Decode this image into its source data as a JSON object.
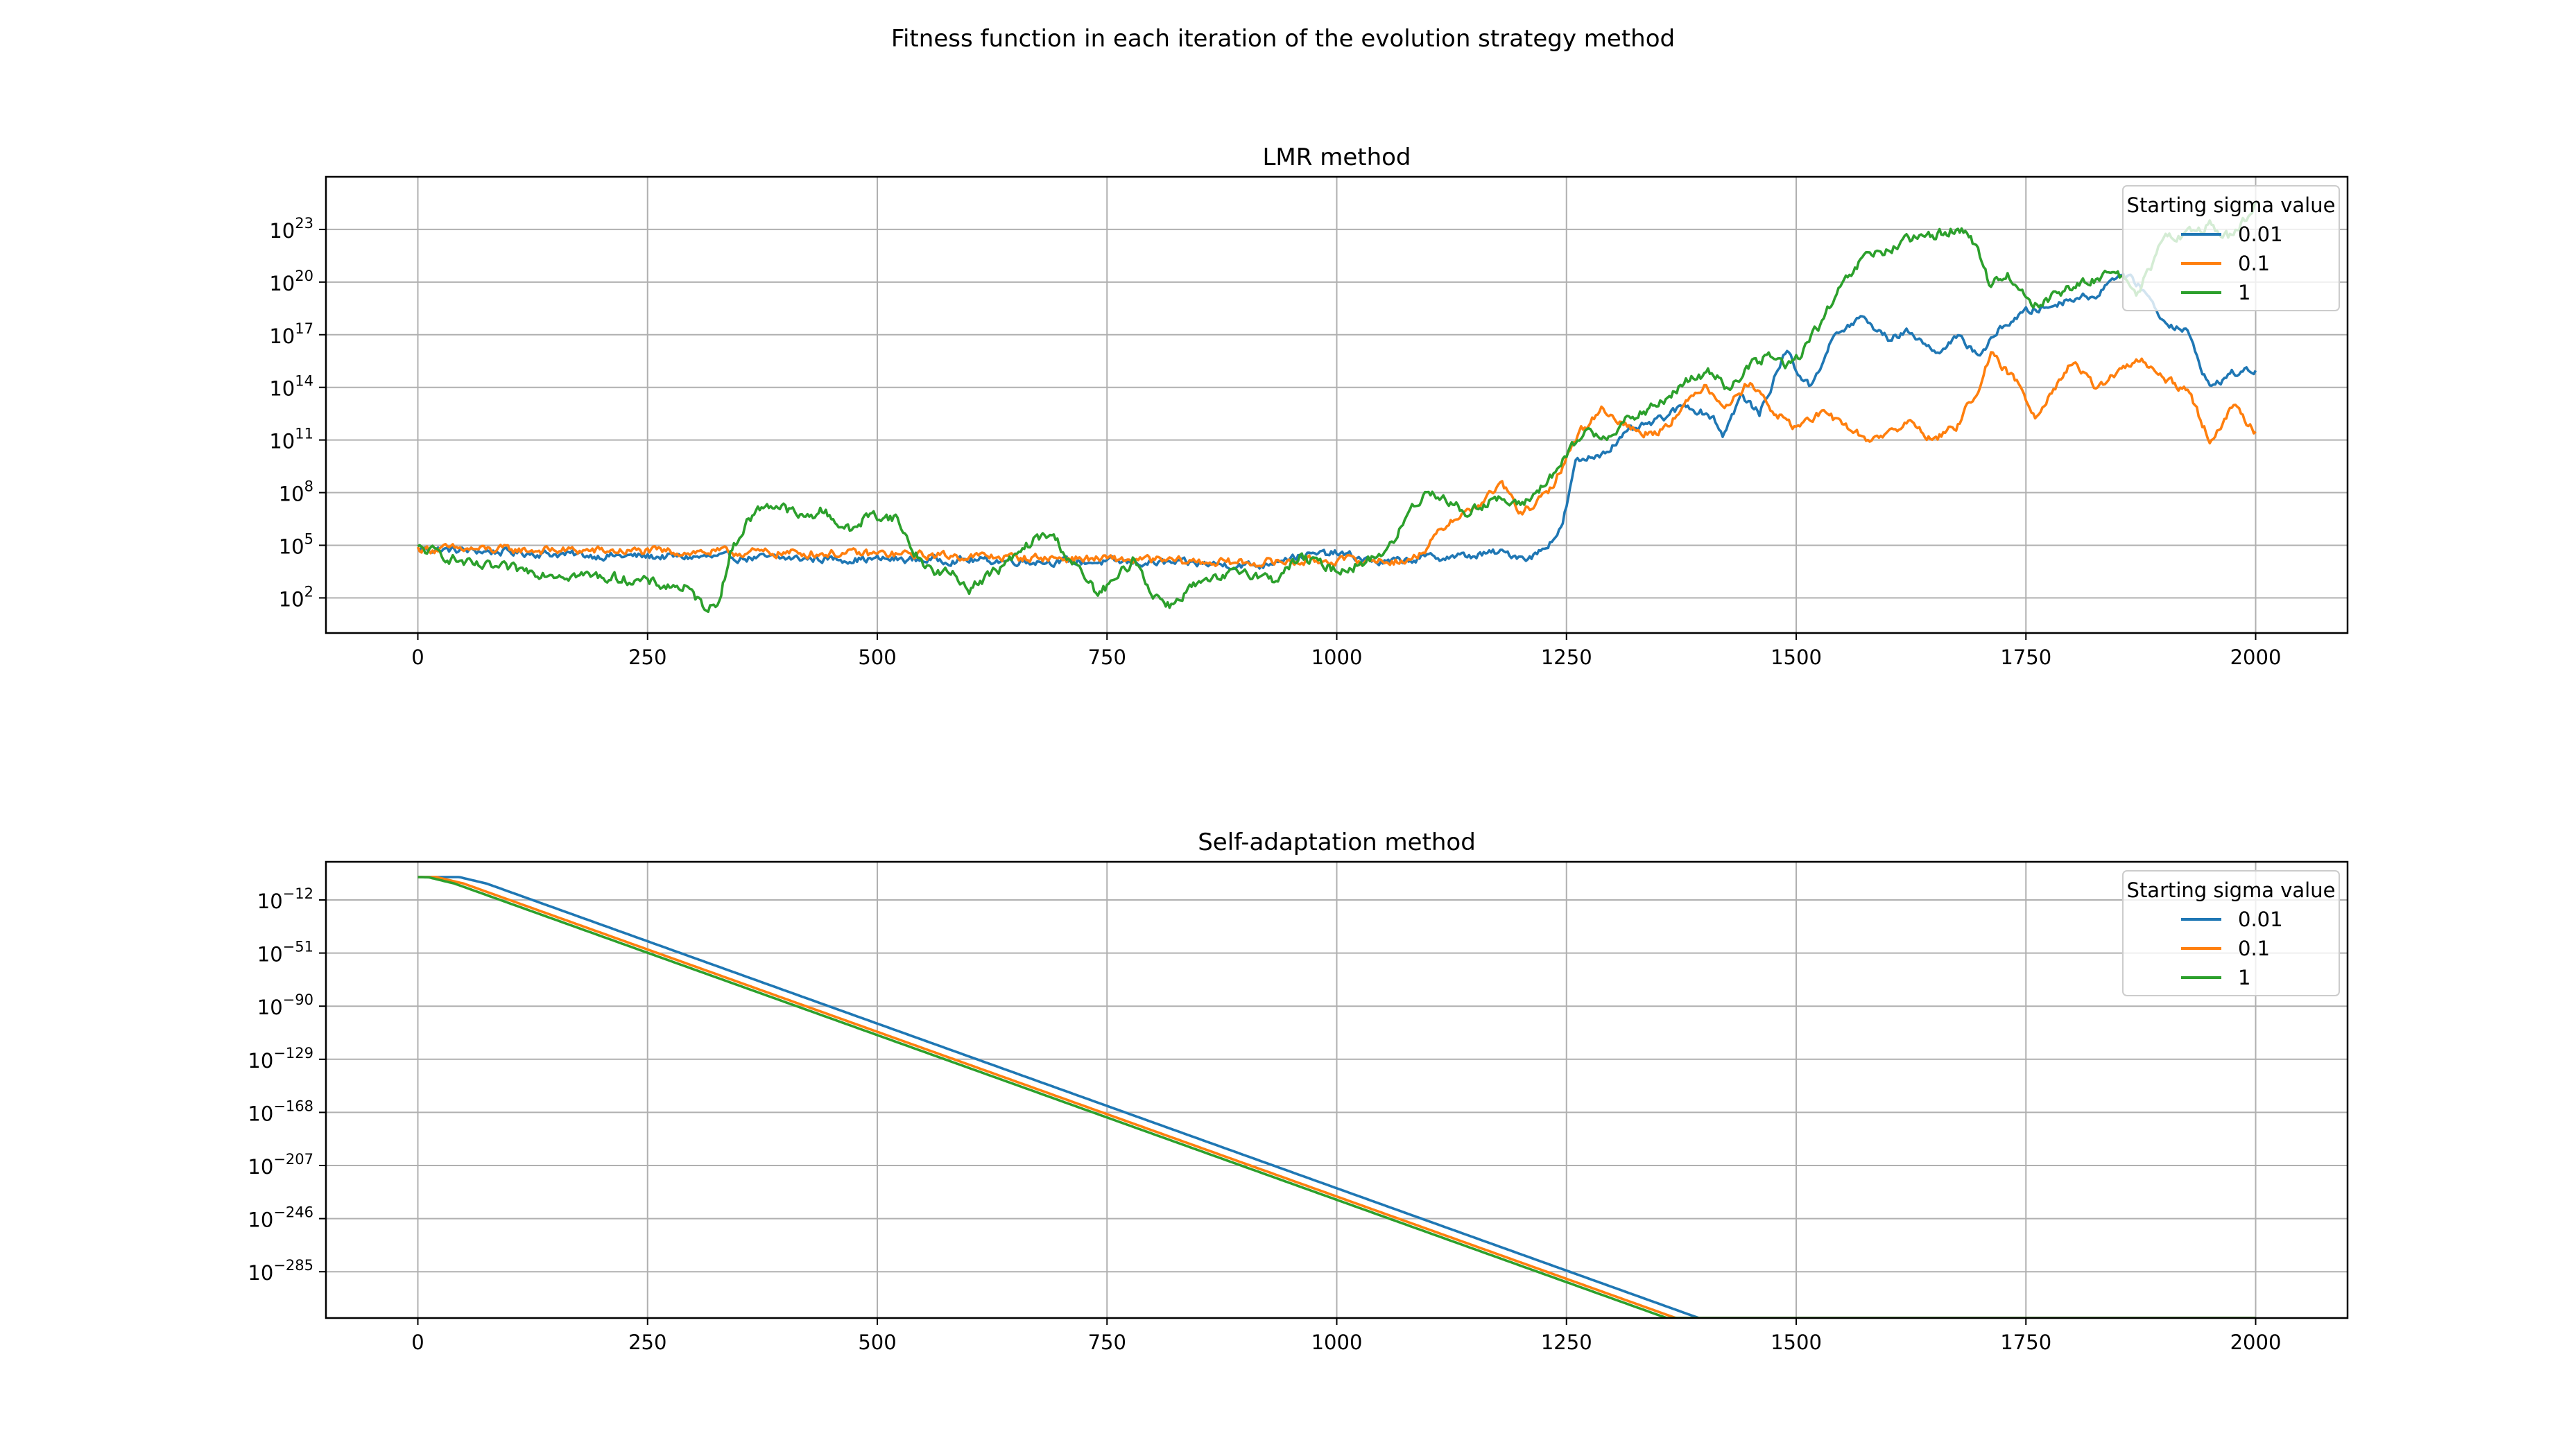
{
  "figure": {
    "suptitle": "Fitness function in each iteration of the evolution strategy method"
  },
  "colors": {
    "series": [
      "#1f77b4",
      "#ff7f0e",
      "#2ca02c"
    ],
    "grid": "#b0b0b0",
    "axes": "#000000",
    "background": "#ffffff"
  },
  "chart_data": [
    {
      "type": "line",
      "title": "LMR method",
      "xlabel": "",
      "ylabel": "",
      "x_range": [
        0,
        2000
      ],
      "xlim": [
        -100,
        2100
      ],
      "xticks": [
        0,
        250,
        500,
        750,
        1000,
        1250,
        1500,
        1750,
        2000
      ],
      "yscale": "log",
      "ylim_log10": [
        0,
        26
      ],
      "ytick_exponents": [
        2,
        5,
        8,
        11,
        14,
        17,
        20,
        23
      ],
      "ytick_base": "10",
      "grid": true,
      "legend": {
        "title": "Starting sigma value",
        "location": "upper right"
      },
      "series": [
        {
          "name": "0.01",
          "color": "#1f77b4",
          "log10_anchors": [
            [
              0,
              4.8
            ],
            [
              200,
              4.4
            ],
            [
              400,
              4.25
            ],
            [
              600,
              4.15
            ],
            [
              800,
              4.0
            ],
            [
              920,
              3.85
            ],
            [
              940,
              4.3
            ],
            [
              1000,
              4.55
            ],
            [
              1050,
              4.0
            ],
            [
              1100,
              4.3
            ],
            [
              1150,
              4.4
            ],
            [
              1175,
              4.6
            ],
            [
              1210,
              4.3
            ],
            [
              1225,
              4.8
            ],
            [
              1245,
              6.0
            ],
            [
              1260,
              9.7
            ],
            [
              1290,
              10.3
            ],
            [
              1320,
              11.5
            ],
            [
              1350,
              12.1
            ],
            [
              1380,
              13.0
            ],
            [
              1410,
              12.3
            ],
            [
              1420,
              11.3
            ],
            [
              1440,
              13.5
            ],
            [
              1460,
              12.5
            ],
            [
              1490,
              16.2
            ],
            [
              1500,
              15.0
            ],
            [
              1515,
              14.0
            ],
            [
              1540,
              16.8
            ],
            [
              1570,
              18.0
            ],
            [
              1600,
              16.8
            ],
            [
              1625,
              17.2
            ],
            [
              1650,
              16.0
            ],
            [
              1675,
              16.8
            ],
            [
              1700,
              15.9
            ],
            [
              1725,
              17.5
            ],
            [
              1750,
              18.3
            ],
            [
              1775,
              18.6
            ],
            [
              1800,
              19.1
            ],
            [
              1825,
              19.2
            ],
            [
              1850,
              20.5
            ],
            [
              1875,
              19.8
            ],
            [
              1900,
              17.8
            ],
            [
              1925,
              17.2
            ],
            [
              1950,
              14.0
            ],
            [
              1975,
              14.8
            ],
            [
              2000,
              15.0
            ]
          ]
        },
        {
          "name": "0.1",
          "color": "#ff7f0e",
          "log10_anchors": [
            [
              0,
              4.8
            ],
            [
              250,
              4.65
            ],
            [
              500,
              4.5
            ],
            [
              750,
              4.2
            ],
            [
              900,
              4.0
            ],
            [
              1000,
              4.15
            ],
            [
              1080,
              4.1
            ],
            [
              1100,
              5.0
            ],
            [
              1125,
              6.5
            ],
            [
              1150,
              7.1
            ],
            [
              1180,
              8.5
            ],
            [
              1200,
              6.8
            ],
            [
              1230,
              7.9
            ],
            [
              1250,
              10.0
            ],
            [
              1265,
              11.5
            ],
            [
              1290,
              12.8
            ],
            [
              1310,
              12.0
            ],
            [
              1330,
              11.4
            ],
            [
              1350,
              11.5
            ],
            [
              1375,
              12.7
            ],
            [
              1400,
              14.2
            ],
            [
              1425,
              12.9
            ],
            [
              1450,
              14.4
            ],
            [
              1475,
              12.6
            ],
            [
              1500,
              11.7
            ],
            [
              1525,
              12.5
            ],
            [
              1550,
              12.0
            ],
            [
              1575,
              11.0
            ],
            [
              1600,
              11.4
            ],
            [
              1625,
              12.0
            ],
            [
              1650,
              11.0
            ],
            [
              1675,
              11.8
            ],
            [
              1700,
              14.2
            ],
            [
              1712,
              15.8
            ],
            [
              1740,
              14.3
            ],
            [
              1760,
              12.4
            ],
            [
              1775,
              13.6
            ],
            [
              1800,
              15.4
            ],
            [
              1825,
              14.0
            ],
            [
              1850,
              14.8
            ],
            [
              1875,
              15.6
            ],
            [
              1900,
              14.4
            ],
            [
              1925,
              13.9
            ],
            [
              1950,
              11.0
            ],
            [
              1975,
              12.9
            ],
            [
              2000,
              11.5
            ]
          ]
        },
        {
          "name": "1",
          "color": "#2ca02c",
          "log10_anchors": [
            [
              0,
              4.8
            ],
            [
              25,
              4.5
            ],
            [
              60,
              3.8
            ],
            [
              120,
              3.55
            ],
            [
              175,
              3.3
            ],
            [
              225,
              3.1
            ],
            [
              270,
              2.7
            ],
            [
              290,
              2.6
            ],
            [
              310,
              1.6
            ],
            [
              325,
              1.5
            ],
            [
              340,
              4.5
            ],
            [
              360,
              6.5
            ],
            [
              380,
              7.4
            ],
            [
              400,
              7.1
            ],
            [
              420,
              6.5
            ],
            [
              440,
              7.0
            ],
            [
              470,
              5.8
            ],
            [
              490,
              6.7
            ],
            [
              520,
              6.6
            ],
            [
              540,
              4.6
            ],
            [
              560,
              3.5
            ],
            [
              580,
              3.4
            ],
            [
              600,
              2.6
            ],
            [
              625,
              3.4
            ],
            [
              650,
              4.3
            ],
            [
              670,
              5.3
            ],
            [
              690,
              5.6
            ],
            [
              720,
              3.5
            ],
            [
              740,
              2.2
            ],
            [
              760,
              3.0
            ],
            [
              780,
              4.3
            ],
            [
              800,
              2.2
            ],
            [
              820,
              1.6
            ],
            [
              840,
              2.6
            ],
            [
              870,
              3.0
            ],
            [
              900,
              3.6
            ],
            [
              930,
              3.0
            ],
            [
              960,
              4.3
            ],
            [
              1000,
              3.6
            ],
            [
              1030,
              4.0
            ],
            [
              1060,
              5.0
            ],
            [
              1080,
              7.0
            ],
            [
              1100,
              8.2
            ],
            [
              1120,
              7.6
            ],
            [
              1140,
              6.8
            ],
            [
              1170,
              7.7
            ],
            [
              1200,
              7.2
            ],
            [
              1230,
              8.7
            ],
            [
              1250,
              10.0
            ],
            [
              1270,
              11.5
            ],
            [
              1290,
              11.2
            ],
            [
              1320,
              12.2
            ],
            [
              1350,
              13.0
            ],
            [
              1380,
              14.3
            ],
            [
              1410,
              14.9
            ],
            [
              1425,
              14.0
            ],
            [
              1450,
              15.2
            ],
            [
              1470,
              15.8
            ],
            [
              1490,
              15.2
            ],
            [
              1500,
              15.6
            ],
            [
              1525,
              17.5
            ],
            [
              1550,
              19.7
            ],
            [
              1575,
              21.5
            ],
            [
              1600,
              21.8
            ],
            [
              1620,
              22.3
            ],
            [
              1650,
              22.7
            ],
            [
              1670,
              23.0
            ],
            [
              1690,
              22.7
            ],
            [
              1710,
              20.0
            ],
            [
              1730,
              20.4
            ],
            [
              1760,
              18.7
            ],
            [
              1790,
              19.5
            ],
            [
              1820,
              20.0
            ],
            [
              1850,
              20.8
            ],
            [
              1870,
              19.0
            ],
            [
              1880,
              20.2
            ],
            [
              1900,
              22.4
            ],
            [
              1925,
              22.8
            ],
            [
              1950,
              23.3
            ],
            [
              1975,
              22.5
            ],
            [
              2000,
              24.3
            ]
          ]
        }
      ]
    },
    {
      "type": "line",
      "title": "Self-adaptation method",
      "xlabel": "",
      "ylabel": "",
      "x_range": [
        0,
        2000
      ],
      "xlim": [
        -100,
        2100
      ],
      "xticks": [
        0,
        250,
        500,
        750,
        1000,
        1250,
        1500,
        1750,
        2000
      ],
      "yscale": "log",
      "ylim_log10": [
        -319,
        16
      ],
      "ytick_exponents": [
        -12,
        -51,
        -90,
        -129,
        -168,
        -207,
        -246,
        -285
      ],
      "ytick_base": "10",
      "grid": true,
      "legend": {
        "title": "Starting sigma value",
        "location": "upper right"
      },
      "series": [
        {
          "name": "0.01",
          "color": "#1f77b4",
          "log10_anchors": [
            [
              0,
              4.8
            ],
            [
              45,
              4.8
            ],
            [
              75,
              0
            ],
            [
              1394,
              -319
            ]
          ]
        },
        {
          "name": "0.1",
          "color": "#ff7f0e",
          "log10_anchors": [
            [
              0,
              4.8
            ],
            [
              20,
              4.8
            ],
            [
              50,
              0
            ],
            [
              1369,
              -319
            ]
          ]
        },
        {
          "name": "1",
          "color": "#2ca02c",
          "log10_anchors": [
            [
              0,
              4.8
            ],
            [
              12,
              4.6
            ],
            [
              40,
              0
            ],
            [
              1359,
              -319
            ]
          ]
        }
      ]
    }
  ]
}
